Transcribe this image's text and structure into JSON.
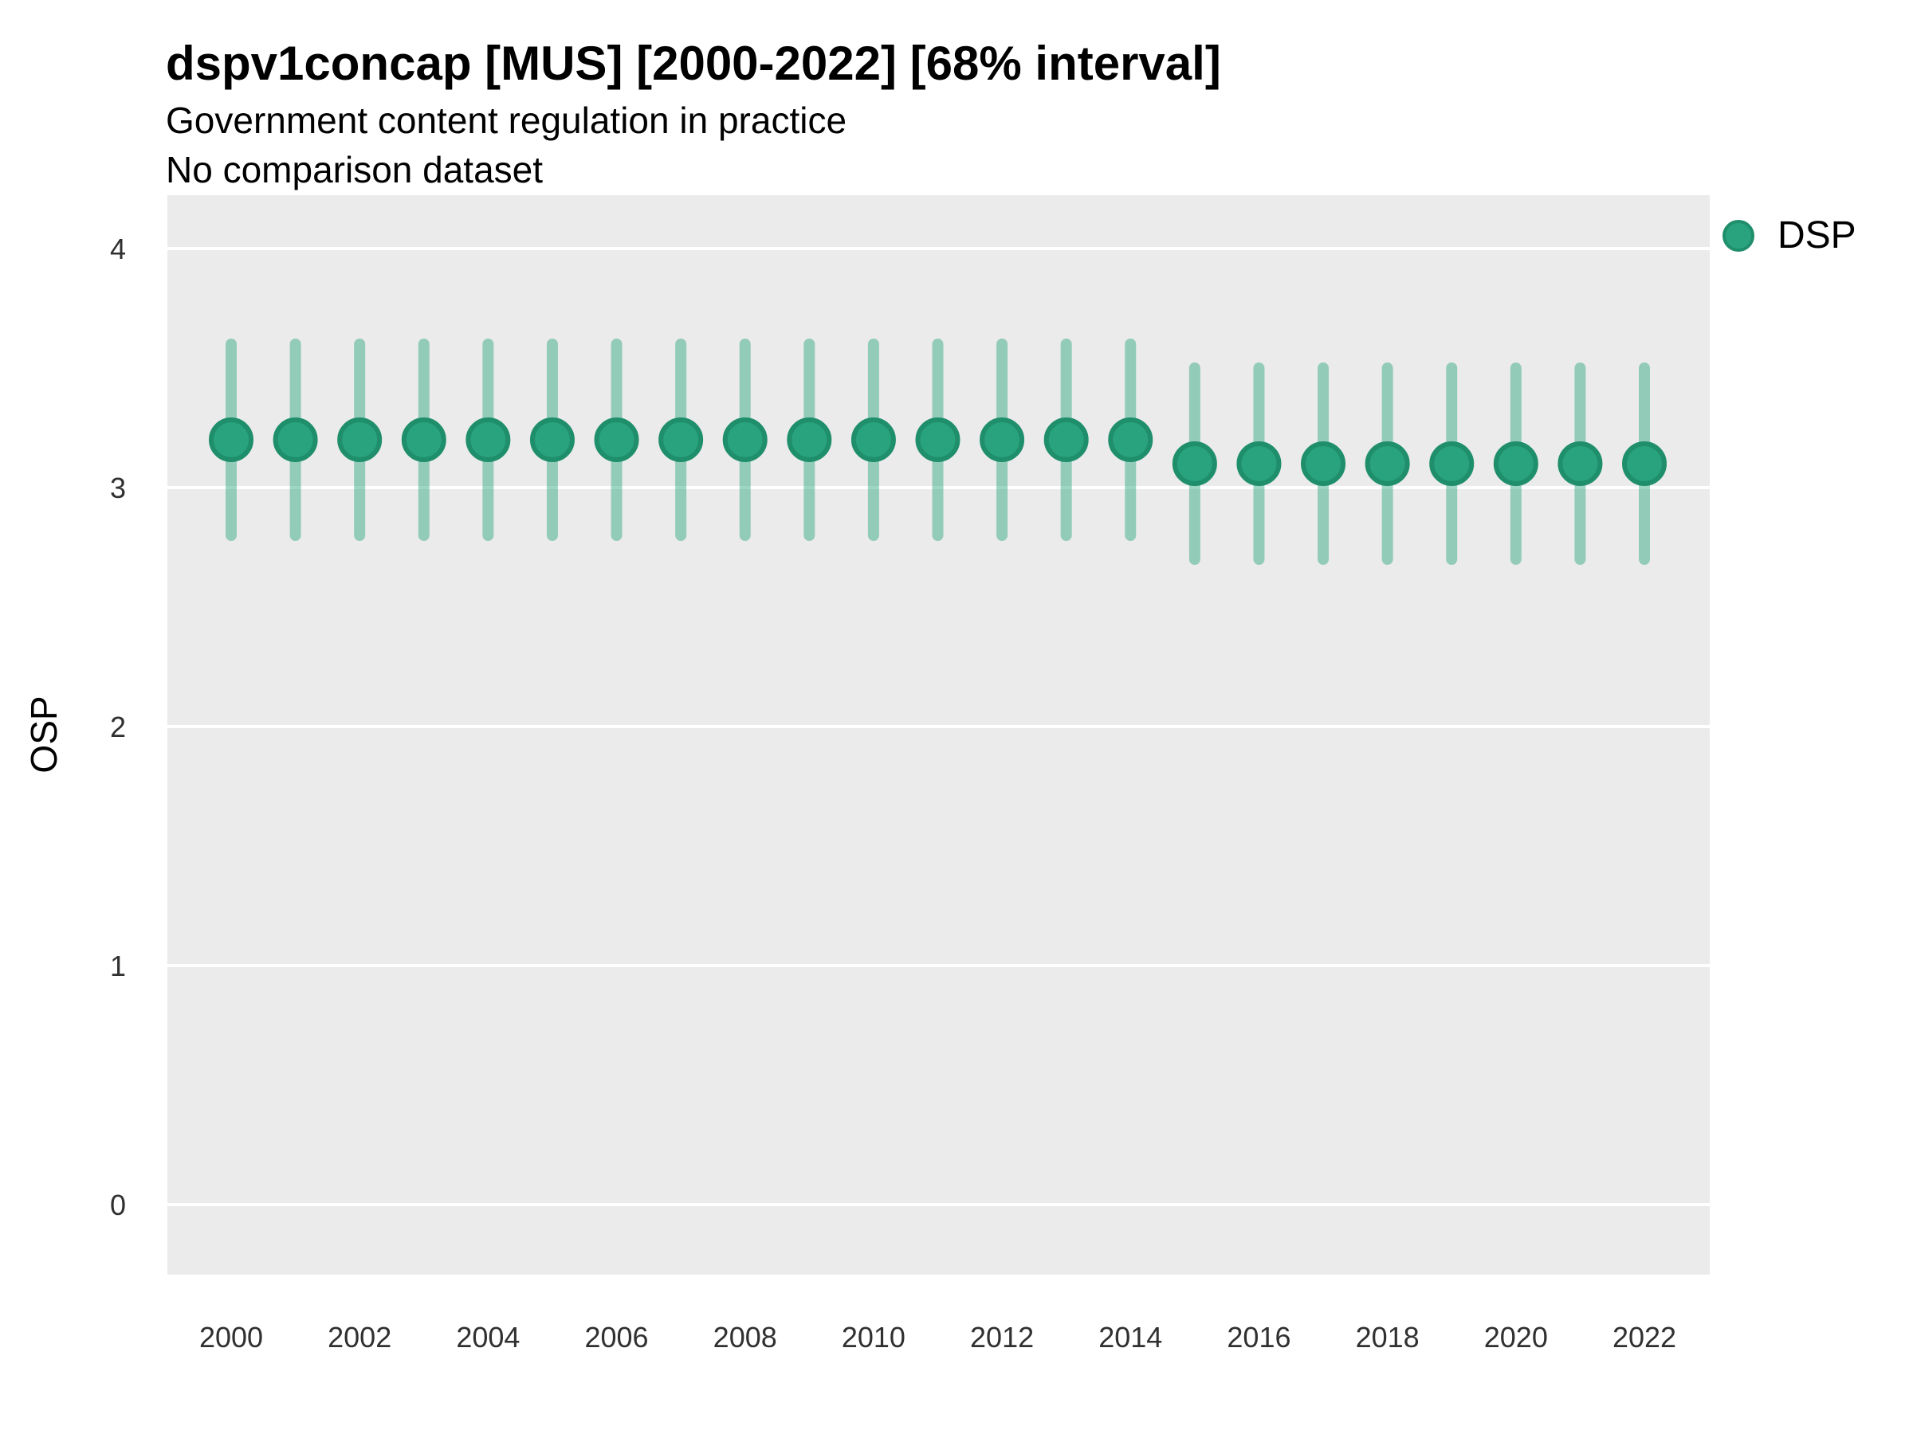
{
  "header": {
    "title": "dspv1concap [MUS] [2000-2022] [68% interval]",
    "subtitle": "Government content regulation in practice",
    "note": "No comparison dataset"
  },
  "legend": {
    "position": "right-top",
    "items": [
      {
        "label": "DSP",
        "color": "#29a37d"
      }
    ]
  },
  "colors": {
    "background": "#ffffff",
    "panel_bg": "#ebebeb",
    "grid": "#ffffff",
    "point_fill": "#29a37d",
    "point_stroke": "#1f8e6b",
    "interval_color": "#29a37d",
    "interval_opacity": 0.45,
    "title_text": "#000000",
    "tick_text": "#303030"
  },
  "chart_data": {
    "type": "pointrange",
    "title": "dspv1concap [MUS] [2000-2022] [68% interval]",
    "subtitle": "Government content regulation in practice",
    "note": "No comparison dataset",
    "interval_label": "68% interval",
    "country": "MUS",
    "xlabel": "",
    "ylabel": "OSP",
    "grid": "horizontal-major-only",
    "legend_position": "right-top",
    "ylim": [
      0,
      4
    ],
    "y_ticks": [
      0,
      1,
      2,
      3,
      4
    ],
    "x_tick_labels": [
      2000,
      2002,
      2004,
      2006,
      2008,
      2010,
      2012,
      2014,
      2016,
      2018,
      2020,
      2022
    ],
    "x": [
      2000,
      2001,
      2002,
      2003,
      2004,
      2005,
      2006,
      2007,
      2008,
      2009,
      2010,
      2011,
      2012,
      2013,
      2014,
      2015,
      2016,
      2017,
      2018,
      2019,
      2020,
      2021,
      2022
    ],
    "series": [
      {
        "name": "DSP",
        "values": [
          3.2,
          3.2,
          3.2,
          3.2,
          3.2,
          3.2,
          3.2,
          3.2,
          3.2,
          3.2,
          3.2,
          3.2,
          3.2,
          3.2,
          3.2,
          3.1,
          3.1,
          3.1,
          3.1,
          3.1,
          3.1,
          3.1,
          3.1
        ],
        "lower": [
          2.8,
          2.8,
          2.8,
          2.8,
          2.8,
          2.8,
          2.8,
          2.8,
          2.8,
          2.8,
          2.8,
          2.8,
          2.8,
          2.8,
          2.8,
          2.7,
          2.7,
          2.7,
          2.7,
          2.7,
          2.7,
          2.7,
          2.7
        ],
        "upper": [
          3.6,
          3.6,
          3.6,
          3.6,
          3.6,
          3.6,
          3.6,
          3.6,
          3.6,
          3.6,
          3.6,
          3.6,
          3.6,
          3.6,
          3.6,
          3.5,
          3.5,
          3.5,
          3.5,
          3.5,
          3.5,
          3.5,
          3.5
        ]
      }
    ]
  }
}
